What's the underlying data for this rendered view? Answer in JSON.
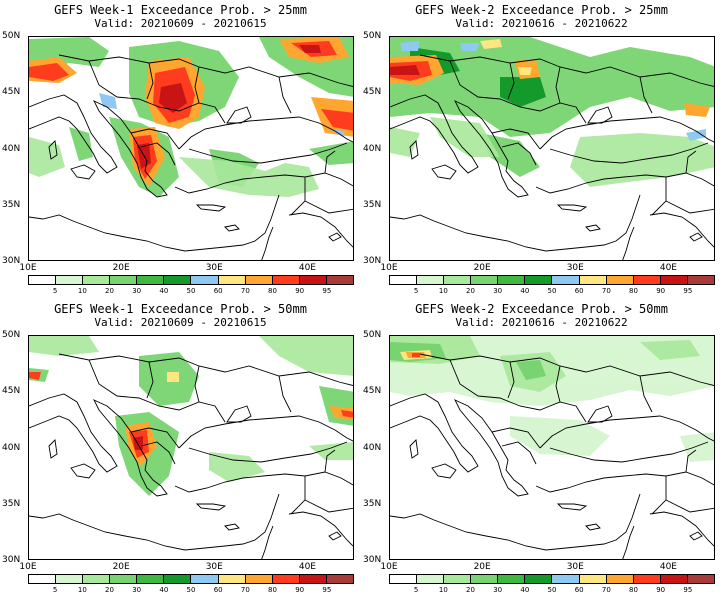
{
  "panels": [
    {
      "title": "GEFS Week-1 Exceedance Prob. > 25mm",
      "valid": "Valid: 20210609 - 20210615"
    },
    {
      "title": "GEFS Week-2 Exceedance Prob. > 25mm",
      "valid": "Valid: 20210616 - 20210622"
    },
    {
      "title": "GEFS Week-1 Exceedance Prob. > 50mm",
      "valid": "Valid: 20210609 - 20210615"
    },
    {
      "title": "GEFS Week-2 Exceedance Prob. > 50mm",
      "valid": "Valid: 20210616 - 20210622"
    }
  ],
  "lat_labels": [
    "50N",
    "45N",
    "40N",
    "35N",
    "30N"
  ],
  "lon_labels": [
    "10E",
    "20E",
    "30E",
    "40E"
  ],
  "legend": {
    "thresholds": [
      "5",
      "10",
      "20",
      "30",
      "40",
      "50",
      "60",
      "70",
      "80",
      "90",
      "95"
    ],
    "colors": [
      "#ffffff",
      "#d6f5d0",
      "#a8e89a",
      "#78d470",
      "#3eb83e",
      "#139a2a",
      "#8fc8f0",
      "#ffe680",
      "#ffa630",
      "#ff3c1e",
      "#c81414",
      "#a83a3a"
    ]
  }
}
